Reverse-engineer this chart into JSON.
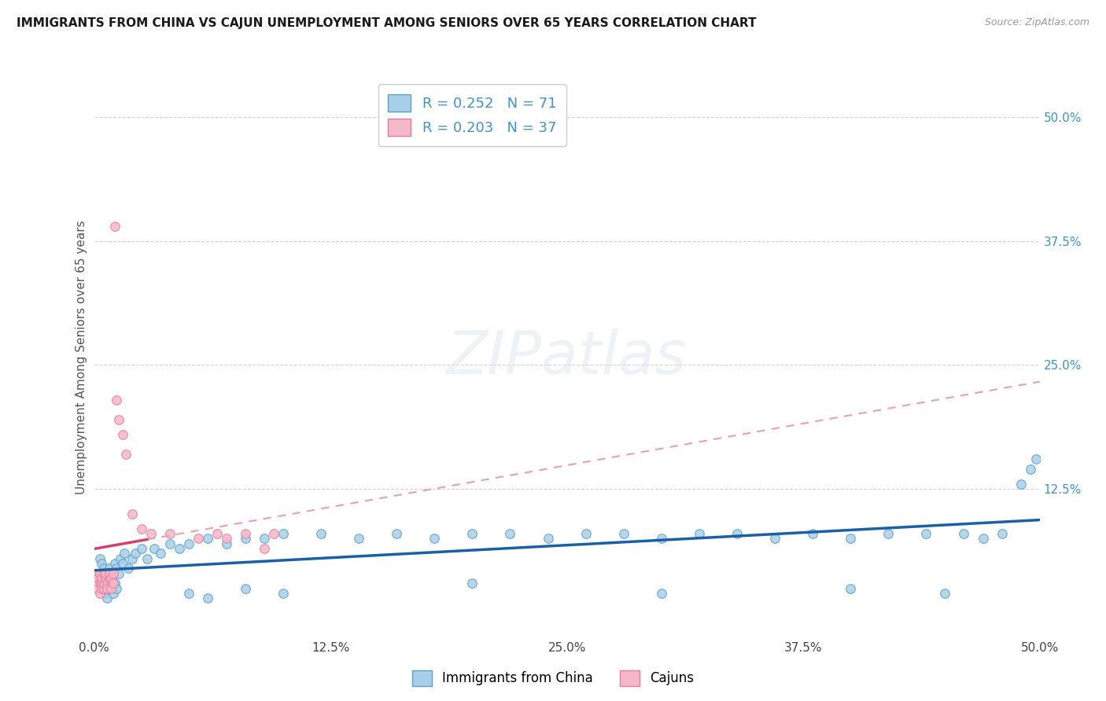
{
  "title": "IMMIGRANTS FROM CHINA VS CAJUN UNEMPLOYMENT AMONG SENIORS OVER 65 YEARS CORRELATION CHART",
  "source": "Source: ZipAtlas.com",
  "ylabel": "Unemployment Among Seniors over 65 years",
  "xlim": [
    0.0,
    0.5
  ],
  "ylim": [
    -0.025,
    0.54
  ],
  "xtick_vals": [
    0.0,
    0.125,
    0.25,
    0.375,
    0.5
  ],
  "right_ytick_labels": [
    "50.0%",
    "37.5%",
    "25.0%",
    "12.5%"
  ],
  "right_ytick_vals": [
    0.5,
    0.375,
    0.25,
    0.125
  ],
  "grid_ytick_vals": [
    0.5,
    0.375,
    0.25,
    0.125
  ],
  "watermark": "ZIPatlas",
  "china_color": "#a8cfe8",
  "china_edge": "#5b9ec9",
  "cajun_color": "#f4b8c8",
  "cajun_edge": "#e87a9a",
  "china_line_color": "#1a5fa8",
  "cajun_solid_color": "#d44070",
  "cajun_dash_color": "#e8a0b0",
  "background_color": "#ffffff",
  "grid_color": "#d0d0d0",
  "china_x": [
    0.002,
    0.003,
    0.003,
    0.004,
    0.004,
    0.005,
    0.005,
    0.006,
    0.006,
    0.007,
    0.007,
    0.008,
    0.008,
    0.009,
    0.009,
    0.01,
    0.01,
    0.011,
    0.011,
    0.012,
    0.012,
    0.013,
    0.014,
    0.015,
    0.016,
    0.018,
    0.02,
    0.022,
    0.025,
    0.028,
    0.032,
    0.035,
    0.04,
    0.045,
    0.05,
    0.06,
    0.07,
    0.08,
    0.09,
    0.1,
    0.12,
    0.14,
    0.16,
    0.18,
    0.2,
    0.22,
    0.24,
    0.26,
    0.28,
    0.3,
    0.32,
    0.34,
    0.36,
    0.38,
    0.4,
    0.42,
    0.44,
    0.46,
    0.47,
    0.48,
    0.49,
    0.495,
    0.498,
    0.05,
    0.06,
    0.08,
    0.1,
    0.2,
    0.3,
    0.4,
    0.45
  ],
  "china_y": [
    0.04,
    0.035,
    0.055,
    0.03,
    0.05,
    0.045,
    0.025,
    0.035,
    0.02,
    0.04,
    0.015,
    0.045,
    0.03,
    0.035,
    0.025,
    0.04,
    0.02,
    0.05,
    0.03,
    0.045,
    0.025,
    0.04,
    0.055,
    0.05,
    0.06,
    0.045,
    0.055,
    0.06,
    0.065,
    0.055,
    0.065,
    0.06,
    0.07,
    0.065,
    0.07,
    0.075,
    0.07,
    0.075,
    0.075,
    0.08,
    0.08,
    0.075,
    0.08,
    0.075,
    0.08,
    0.08,
    0.075,
    0.08,
    0.08,
    0.075,
    0.08,
    0.08,
    0.075,
    0.08,
    0.075,
    0.08,
    0.08,
    0.08,
    0.075,
    0.08,
    0.13,
    0.145,
    0.155,
    0.02,
    0.015,
    0.025,
    0.02,
    0.03,
    0.02,
    0.025,
    0.02
  ],
  "cajun_x": [
    0.001,
    0.002,
    0.002,
    0.003,
    0.003,
    0.003,
    0.004,
    0.004,
    0.004,
    0.005,
    0.005,
    0.005,
    0.006,
    0.006,
    0.007,
    0.007,
    0.008,
    0.008,
    0.009,
    0.009,
    0.01,
    0.01,
    0.011,
    0.012,
    0.013,
    0.015,
    0.017,
    0.02,
    0.025,
    0.03,
    0.04,
    0.055,
    0.065,
    0.07,
    0.08,
    0.09,
    0.095
  ],
  "cajun_y": [
    0.04,
    0.035,
    0.025,
    0.03,
    0.02,
    0.04,
    0.03,
    0.025,
    0.035,
    0.04,
    0.025,
    0.03,
    0.035,
    0.04,
    0.03,
    0.025,
    0.035,
    0.04,
    0.025,
    0.035,
    0.03,
    0.04,
    0.39,
    0.215,
    0.195,
    0.18,
    0.16,
    0.1,
    0.085,
    0.08,
    0.08,
    0.075,
    0.08,
    0.075,
    0.08,
    0.065,
    0.08
  ]
}
